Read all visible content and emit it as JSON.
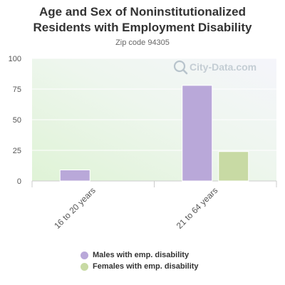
{
  "header": {
    "title": "Age and Sex of Noninstitutionalized Residents with Employment Disability",
    "subtitle": "Zip code 94305"
  },
  "watermark": {
    "text": "City-Data.com",
    "icon": "magnifier-icon"
  },
  "chart_data": {
    "type": "bar",
    "title": "Age and Sex of Noninstitutionalized Residents with Employment Disability",
    "subtitle": "Zip code 94305",
    "categories": [
      "16 to 20 years",
      "21 to 64 years"
    ],
    "series": [
      {
        "name": "Males with emp. disability",
        "values": [
          9,
          78
        ],
        "color": "#b9a8d9"
      },
      {
        "name": "Females with emp. disability",
        "values": [
          null,
          24
        ],
        "color": "#c8daa4"
      }
    ],
    "xlabel": "",
    "ylabel": "",
    "ylim": [
      0,
      100
    ],
    "yticks": [
      0,
      25,
      50,
      75,
      100
    ],
    "grid": true,
    "legend_position": "bottom"
  }
}
